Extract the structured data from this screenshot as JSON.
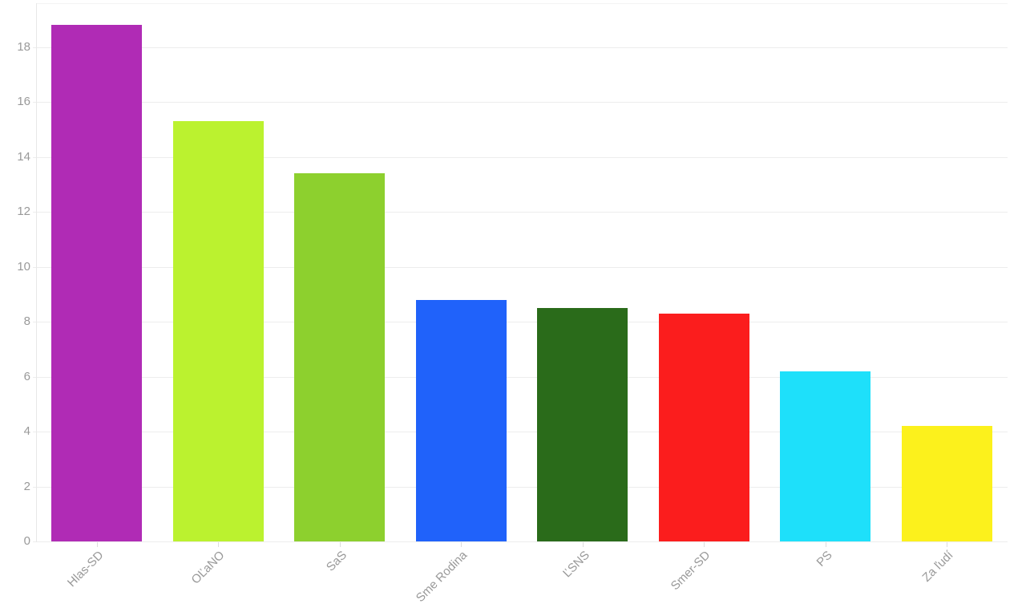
{
  "chart_data": {
    "type": "bar",
    "title": "",
    "xlabel": "",
    "ylabel": "",
    "categories": [
      "Hlas-SD",
      "OĽaNO",
      "SaS",
      "Sme Rodina",
      "ĽSNS",
      "Smer-SD",
      "PS",
      "Za ľudí"
    ],
    "values": [
      18.8,
      15.3,
      13.4,
      8.8,
      8.5,
      8.3,
      6.2,
      4.2
    ],
    "bar_colors": [
      "#b02bb5",
      "#bbf22f",
      "#8dd02e",
      "#2062fa",
      "#2a6b1a",
      "#fb1d1d",
      "#1ee0fa",
      "#fcf11c"
    ],
    "ylim": [
      0,
      19.6
    ],
    "y_ticks": [
      "0",
      "2",
      "4",
      "6",
      "8",
      "10",
      "12",
      "14",
      "16",
      "18"
    ],
    "grid": true,
    "legend": "none",
    "x_label_rotation_deg": 45,
    "colors": {
      "background": "#ffffff",
      "axis_label": "#999999",
      "gridline": "#ededed",
      "axis_line": "#e8e8e8",
      "top_border": "#f4f4f4",
      "tick_mark": "#dddddd"
    }
  }
}
